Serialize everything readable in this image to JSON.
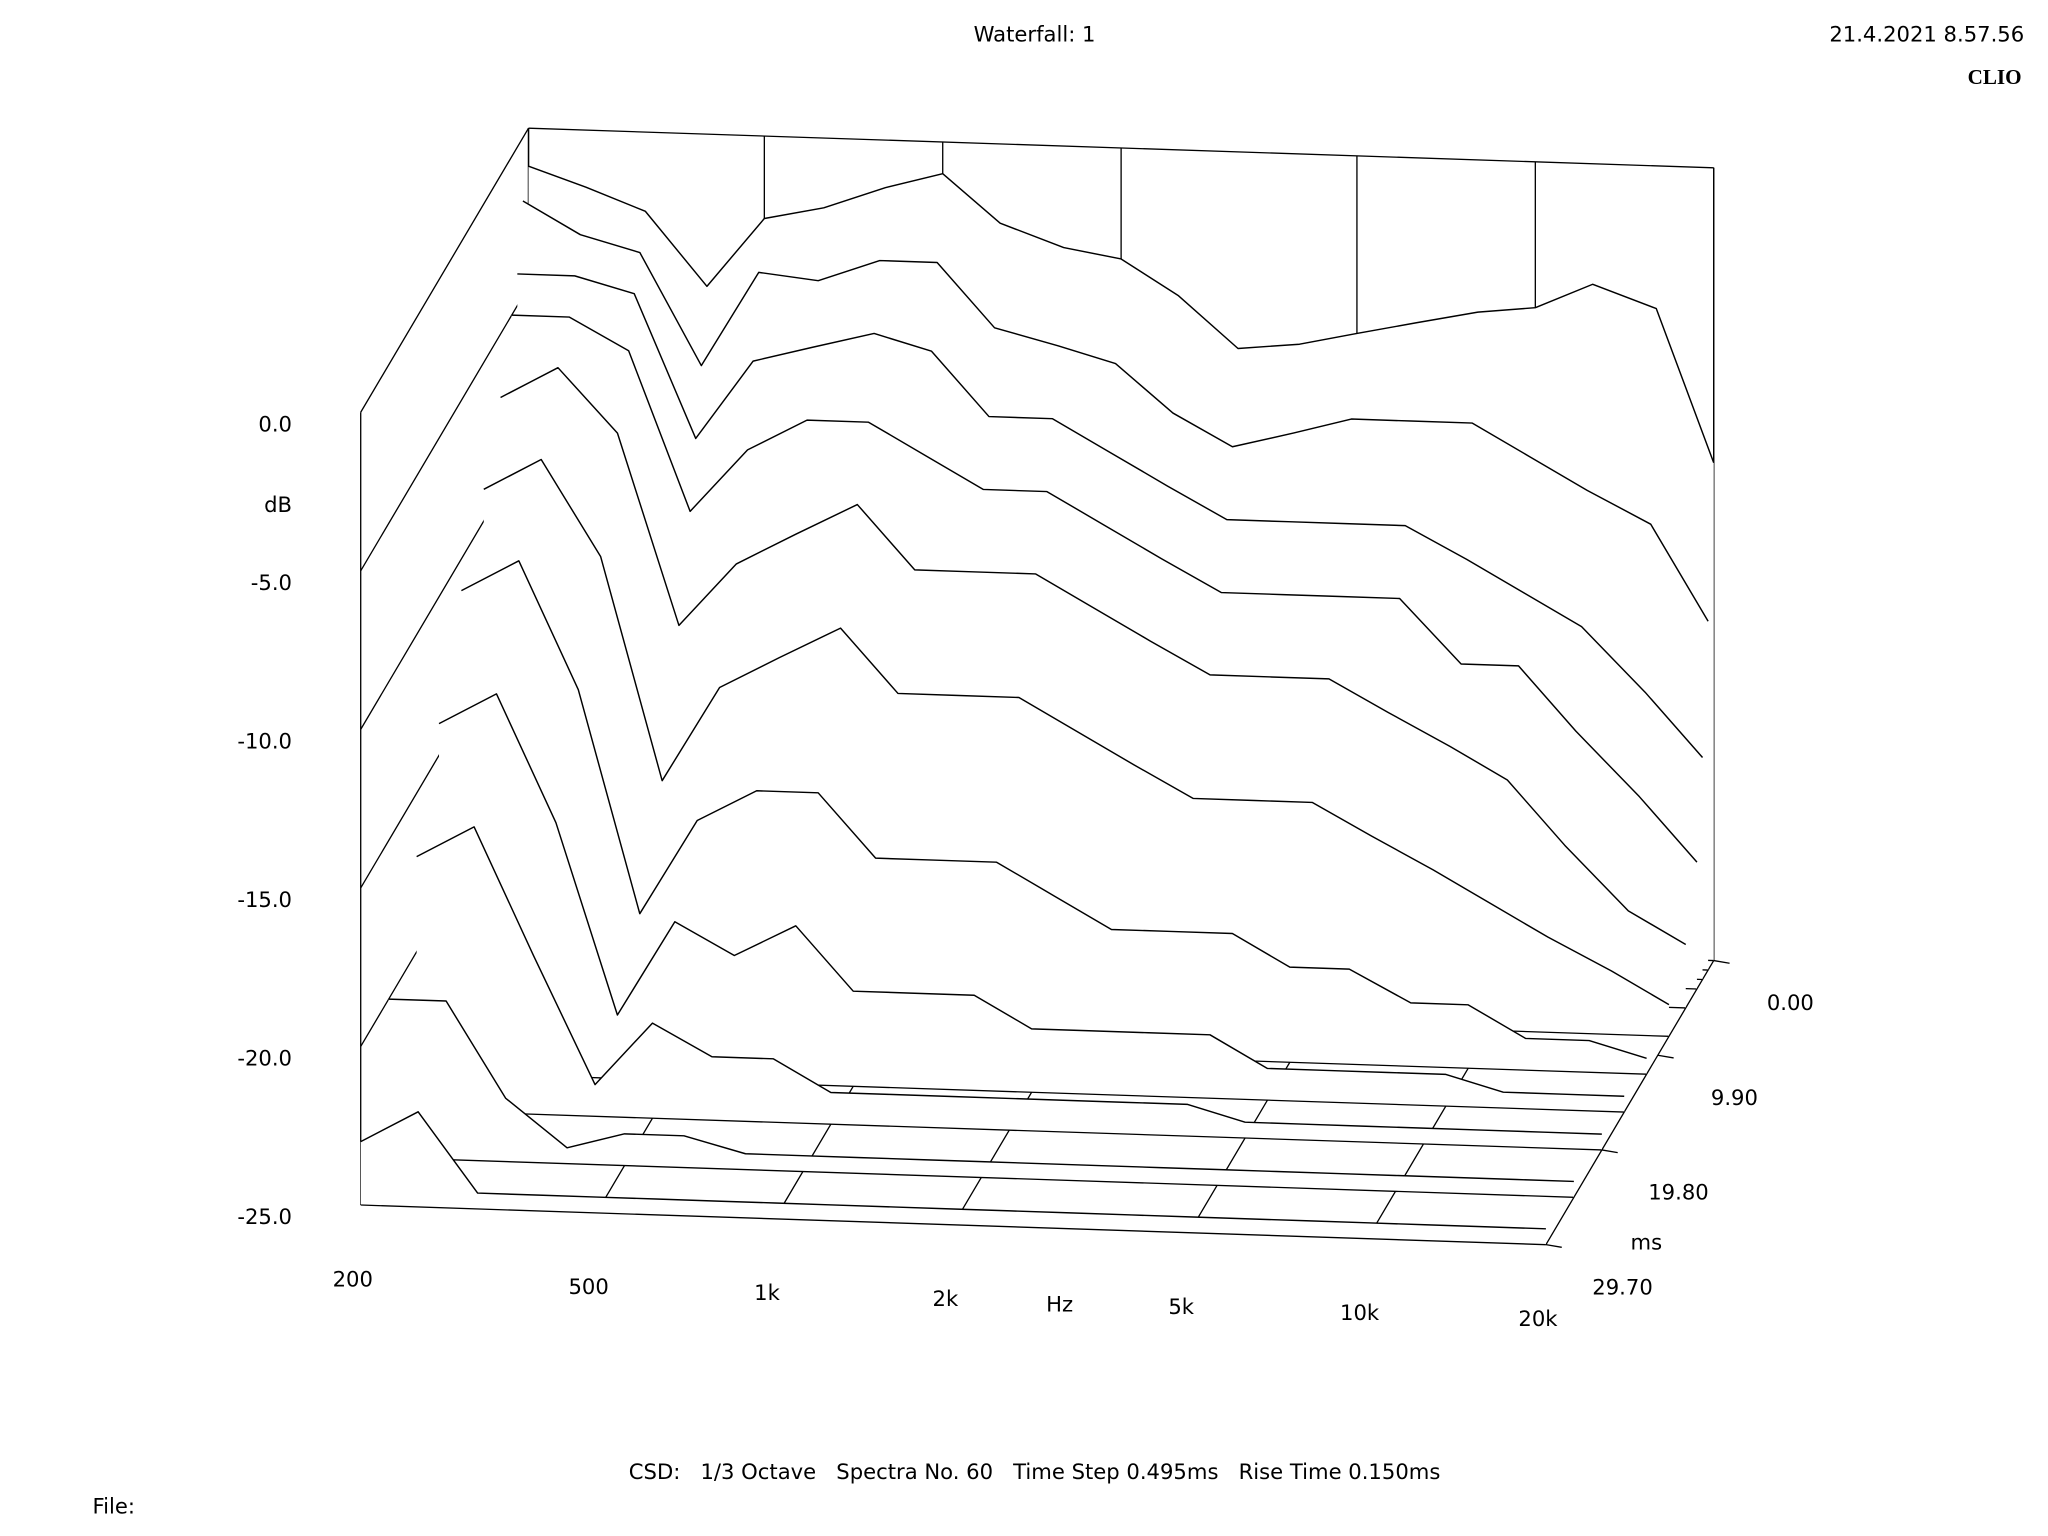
{
  "chart_data": {
    "type": "waterfall",
    "title": "Waterfall: 1",
    "timestamp": "21.4.2021 8.57.56",
    "brand": "CLIO",
    "xlabel": "Hz",
    "ylabel": "dB",
    "zlabel": "ms",
    "footer": "CSD:   1/3 Octave   Spectra No. 60   Time Step 0.495ms   Rise Time 0.150ms",
    "file_label": "File:",
    "log_x": true,
    "xlim": [
      200,
      20000
    ],
    "ylim": [
      -25,
      0
    ],
    "zlim": [
      0,
      29.7
    ],
    "xticks": [
      200,
      500,
      {
        "value": 1000,
        "label": "1k"
      },
      {
        "value": 2000,
        "label": "2k"
      },
      {
        "value": 5000,
        "label": "5k"
      },
      {
        "value": 10000,
        "label": "10k"
      },
      {
        "value": 20000,
        "label": "20k"
      }
    ],
    "yticks": [
      {
        "value": 0,
        "label": "0.0"
      },
      {
        "value": -5,
        "label": "-5.0"
      },
      {
        "value": -10,
        "label": "-10.0"
      },
      {
        "value": -15,
        "label": "-15.0"
      },
      {
        "value": -20,
        "label": "-20.0"
      },
      {
        "value": -25,
        "label": "-25.0"
      }
    ],
    "zticks": [
      {
        "value": 0,
        "label": "0.00"
      },
      {
        "value": 9.9,
        "label": "9.90"
      },
      {
        "value": 19.8,
        "label": "19.80"
      },
      {
        "value": 29.7,
        "label": "29.70"
      }
    ],
    "x": [
      200,
      250,
      315,
      400,
      500,
      630,
      800,
      1000,
      1250,
      1600,
      2000,
      2500,
      3150,
      4000,
      5000,
      6300,
      8000,
      10000,
      12500,
      16000,
      20000
    ],
    "times": [
      0,
      0.99,
      1.98,
      2.97,
      4.95,
      7.92,
      11.88,
      15.84,
      19.8,
      24.75,
      29.7
    ],
    "series": [
      {
        "values": [
          -1.2,
          -1.8,
          -2.5,
          -4.8,
          -2.6,
          -2.2,
          -1.5,
          -1.0,
          -2.5,
          -3.2,
          -3.5,
          -4.6,
          -6.2,
          -6.0,
          -5.6,
          -5.2,
          -4.8,
          -4.6,
          -3.8,
          -4.5,
          -9.3
        ]
      },
      {
        "values": [
          -2,
          -3,
          -3.5,
          -7,
          -4,
          -4.2,
          -3.5,
          -3.5,
          -5.5,
          -6,
          -6.5,
          -8,
          -9,
          -8.5,
          -8,
          -8,
          -8,
          -9,
          -10,
          -11,
          -14
        ]
      },
      {
        "values": [
          -4,
          -4,
          -4.5,
          -9,
          -6.5,
          -6,
          -5.5,
          -6,
          -8,
          -8,
          -9,
          -10,
          -11,
          -11,
          -11,
          -11,
          -12,
          -13,
          -14,
          -16,
          -18
        ]
      },
      {
        "values": [
          -5,
          -5,
          -6,
          -11,
          -9,
          -8,
          -8,
          -9,
          -10,
          -10,
          -11,
          -12,
          -13,
          -13,
          -13,
          -13,
          -15,
          -15,
          -17,
          -19,
          -21
        ]
      },
      {
        "values": [
          -7,
          -6,
          -8,
          -14,
          -12,
          -11,
          -10,
          -12,
          -12,
          -12,
          -13,
          -14,
          -15,
          -15,
          -15,
          -16,
          -17,
          -18,
          -20,
          -22,
          -23
        ]
      },
      {
        "values": [
          -9,
          -8,
          -11,
          -18,
          -15,
          -14,
          -13,
          -15,
          -15,
          -15,
          -16,
          -17,
          -18,
          -18,
          -18,
          -19,
          -20,
          -21,
          -22,
          -23,
          -24
        ]
      },
      {
        "values": [
          -11,
          -10,
          -14,
          -21,
          -18,
          -17,
          -17,
          -19,
          -19,
          -19,
          -20,
          -21,
          -21,
          -21,
          -22,
          -22,
          -23,
          -23,
          -24,
          -24,
          -24.5
        ]
      },
      {
        "values": [
          -14,
          -13,
          -17,
          -23,
          -20,
          -21,
          -20,
          -22,
          -22,
          -22,
          -23,
          -23,
          -23,
          -23,
          -24,
          -24,
          -24,
          -24,
          -24.5,
          -24.5,
          -24.5
        ]
      },
      {
        "values": [
          -17,
          -16,
          -20,
          -24,
          -22,
          -23,
          -23,
          -24,
          -24,
          -24,
          -24,
          -24,
          -24,
          -24,
          -24.5,
          -24.5,
          -24.5,
          -24.5,
          -24.5,
          -24.5,
          -24.5
        ]
      },
      {
        "values": [
          -20,
          -20,
          -23,
          -24.5,
          -24,
          -24,
          -24.5,
          -24.5,
          -24.5,
          -24.5,
          -24.5,
          -24.5,
          -24.5,
          -24.5,
          -24.5,
          -24.5,
          -24.5,
          -24.5,
          -24.5,
          -24.5,
          -24.5
        ]
      },
      {
        "values": [
          -23,
          -22,
          -24.5,
          -24.5,
          -24.5,
          -24.5,
          -24.5,
          -24.5,
          -24.5,
          -24.5,
          -24.5,
          -24.5,
          -24.5,
          -24.5,
          -24.5,
          -24.5,
          -24.5,
          -24.5,
          -24.5,
          -24.5,
          -24.5
        ]
      }
    ]
  }
}
